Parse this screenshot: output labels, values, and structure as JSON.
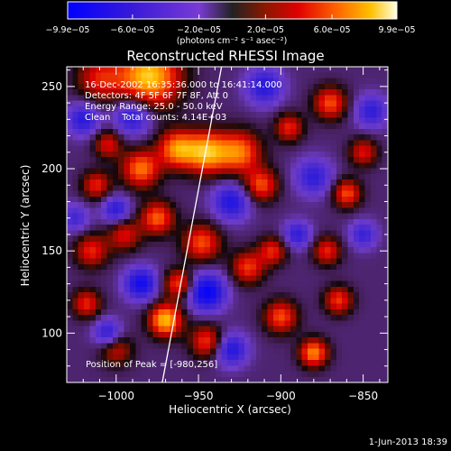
{
  "chart_data": {
    "type": "heatmap",
    "title": "Reconstructed RHESSI Image",
    "xlabel": "Heliocentric X (arcsec)",
    "ylabel": "Heliocentric Y (arcsec)",
    "xlim": [
      -1030,
      -835
    ],
    "ylim": [
      70,
      262
    ],
    "x_ticks": [
      -1000,
      -950,
      -900,
      -850
    ],
    "x_tick_labels": [
      "−1000",
      "−950",
      "−900",
      "−850"
    ],
    "y_ticks": [
      100,
      150,
      200,
      250
    ],
    "y_tick_labels": [
      "100",
      "150",
      "200",
      "250"
    ],
    "annotations": [
      "16-Dec-2002 16:35:36.000 to 16:41:14.000",
      "Detectors: 4F 5F 6F 7F 8F, Att 0",
      "Energy Range: 25.0 - 50.0 keV",
      "Clean    Total counts: 4.14E+03"
    ],
    "peak_label": "Position of Peak = [-980,256]",
    "peak": [
      -980,
      256
    ],
    "limb_line": [
      [
        -972,
        70
      ],
      [
        -936,
        262
      ]
    ],
    "colorbar": {
      "min": -9.9e-05,
      "max": 9.9e-05,
      "tick_labels": [
        "−9.9e−05",
        "−6.0e−05",
        "−2.0e−05",
        "2.0e−05",
        "6.0e−05",
        "9.9e−05"
      ],
      "tick_values": [
        -9.9e-05,
        -6e-05,
        -2e-05,
        2e-05,
        6e-05,
        9.9e-05
      ],
      "unit_label": "(photons cm⁻² s⁻¹ asec⁻²)"
    },
    "sources": [
      {
        "x": -980,
        "y": 256,
        "amp": 9.9e-05,
        "s": 13
      },
      {
        "x": -1010,
        "y": 255,
        "amp": 5e-05,
        "s": 10
      },
      {
        "x": -985,
        "y": 200,
        "amp": 7.5e-05,
        "s": 8
      },
      {
        "x": -975,
        "y": 170,
        "amp": 7e-05,
        "s": 7
      },
      {
        "x": -963,
        "y": 212,
        "amp": 8e-05,
        "s": 8
      },
      {
        "x": -945,
        "y": 210,
        "amp": 9e-05,
        "s": 9
      },
      {
        "x": -925,
        "y": 210,
        "amp": 7.5e-05,
        "s": 9
      },
      {
        "x": -912,
        "y": 190,
        "amp": 6.5e-05,
        "s": 7
      },
      {
        "x": -948,
        "y": 155,
        "amp": 6.5e-05,
        "s": 8
      },
      {
        "x": -1015,
        "y": 150,
        "amp": 5.5e-05,
        "s": 7
      },
      {
        "x": -1018,
        "y": 118,
        "amp": 5.5e-05,
        "s": 6
      },
      {
        "x": -995,
        "y": 160,
        "amp": 5e-05,
        "s": 7
      },
      {
        "x": -1012,
        "y": 190,
        "amp": 5.5e-05,
        "s": 6
      },
      {
        "x": -970,
        "y": 108,
        "amp": 9.5e-05,
        "s": 7
      },
      {
        "x": -945,
        "y": 95,
        "amp": 6e-05,
        "s": 7
      },
      {
        "x": -962,
        "y": 130,
        "amp": 6.5e-05,
        "s": 6
      },
      {
        "x": -920,
        "y": 140,
        "amp": 6e-05,
        "s": 7
      },
      {
        "x": -905,
        "y": 150,
        "amp": 5.5e-05,
        "s": 6
      },
      {
        "x": -900,
        "y": 110,
        "amp": 6.5e-05,
        "s": 7
      },
      {
        "x": -880,
        "y": 88,
        "amp": 8e-05,
        "s": 6
      },
      {
        "x": -865,
        "y": 120,
        "amp": 6e-05,
        "s": 6
      },
      {
        "x": -872,
        "y": 150,
        "amp": 5.5e-05,
        "s": 6
      },
      {
        "x": -860,
        "y": 185,
        "amp": 6.5e-05,
        "s": 6
      },
      {
        "x": -870,
        "y": 240,
        "amp": 6.5e-05,
        "s": 7
      },
      {
        "x": -895,
        "y": 225,
        "amp": 5.5e-05,
        "s": 6
      },
      {
        "x": -850,
        "y": 210,
        "amp": 5e-05,
        "s": 6
      },
      {
        "x": -1000,
        "y": 90,
        "amp": 4.5e-05,
        "s": 7
      },
      {
        "x": -1005,
        "y": 215,
        "amp": 5e-05,
        "s": 6
      },
      {
        "x": -990,
        "y": 232,
        "amp": -6e-05,
        "s": 8
      },
      {
        "x": -1020,
        "y": 230,
        "amp": -5.5e-05,
        "s": 7
      },
      {
        "x": -1000,
        "y": 175,
        "amp": -5.5e-05,
        "s": 6
      },
      {
        "x": -930,
        "y": 180,
        "amp": -6e-05,
        "s": 8
      },
      {
        "x": -945,
        "y": 125,
        "amp": -8e-05,
        "s": 8
      },
      {
        "x": -985,
        "y": 130,
        "amp": -7e-05,
        "s": 7
      },
      {
        "x": -1005,
        "y": 100,
        "amp": -5.5e-05,
        "s": 6
      },
      {
        "x": -930,
        "y": 90,
        "amp": -6e-05,
        "s": 7
      },
      {
        "x": -880,
        "y": 195,
        "amp": -5e-05,
        "s": 8
      },
      {
        "x": -890,
        "y": 160,
        "amp": -5e-05,
        "s": 6
      },
      {
        "x": -845,
        "y": 235,
        "amp": -5e-05,
        "s": 7
      },
      {
        "x": -850,
        "y": 160,
        "amp": -4.5e-05,
        "s": 6
      },
      {
        "x": -910,
        "y": 250,
        "amp": -5.5e-05,
        "s": 8
      },
      {
        "x": -1025,
        "y": 170,
        "amp": -4e-05,
        "s": 6
      }
    ]
  },
  "footer": {
    "date": "1-Jun-2013 18:39"
  }
}
